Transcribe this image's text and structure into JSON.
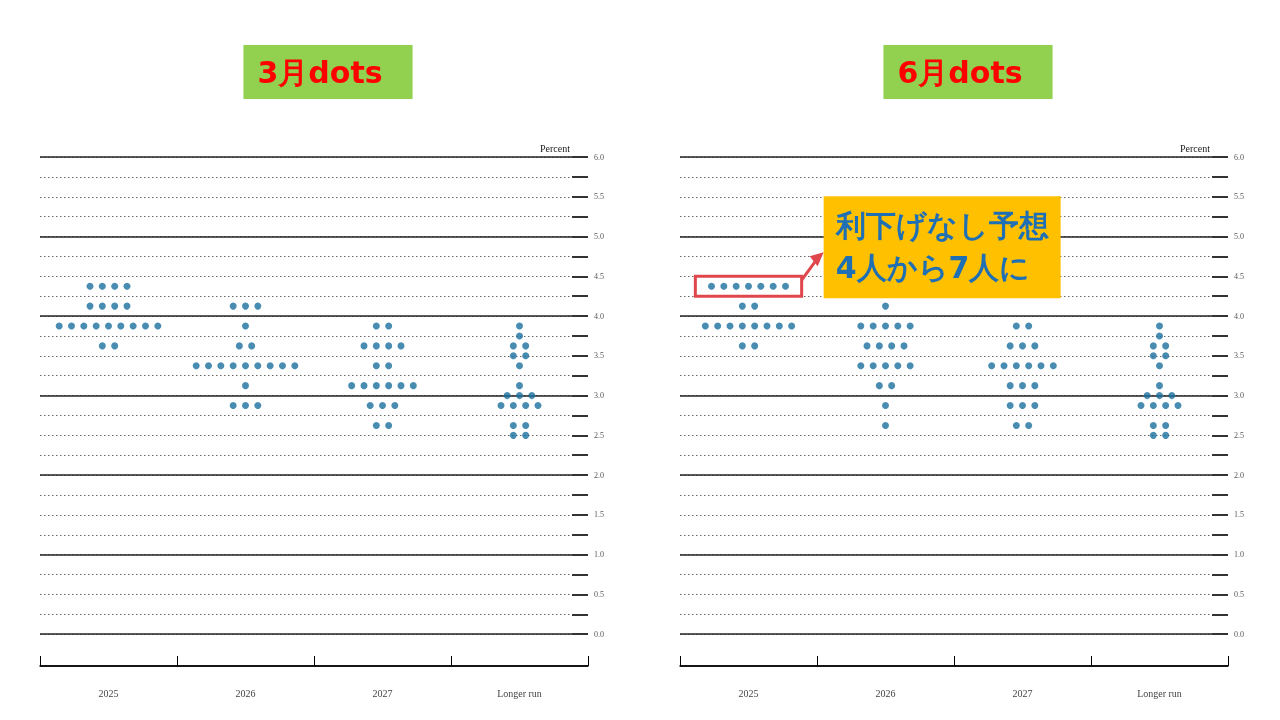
{
  "chart_data": [
    {
      "type": "scatter",
      "title": "3月dots",
      "ylabel": "Percent",
      "categories": [
        "2025",
        "2026",
        "2027",
        "Longer run"
      ],
      "ylim": [
        -0.4,
        6.0
      ],
      "yticks": [
        {
          "value": 0,
          "label": "0.0"
        },
        {
          "value": 0.25,
          "label": null
        },
        {
          "value": 0.5,
          "label": "0.5"
        },
        {
          "value": 0.75,
          "label": null
        },
        {
          "value": 1,
          "label": "1.0"
        },
        {
          "value": 1.25,
          "label": null
        },
        {
          "value": 1.5,
          "label": "1.5"
        },
        {
          "value": 1.75,
          "label": null
        },
        {
          "value": 2,
          "label": "2.0"
        },
        {
          "value": 2.25,
          "label": null
        },
        {
          "value": 2.5,
          "label": "2.5"
        },
        {
          "value": 2.75,
          "label": null
        },
        {
          "value": 3,
          "label": "3.0"
        },
        {
          "value": 3.25,
          "label": null
        },
        {
          "value": 3.5,
          "label": "3.5"
        },
        {
          "value": 3.75,
          "label": null
        },
        {
          "value": 4,
          "label": "4.0"
        },
        {
          "value": 4.25,
          "label": null
        },
        {
          "value": 4.5,
          "label": "4.5"
        },
        {
          "value": 4.75,
          "label": null
        },
        {
          "value": 5,
          "label": "5.0"
        },
        {
          "value": 5.25,
          "label": null
        },
        {
          "value": 5.5,
          "label": "5.5"
        },
        {
          "value": 5.75,
          "label": null
        },
        {
          "value": 6,
          "label": "6.0"
        }
      ],
      "grid": "y",
      "marker": "circle",
      "series": [
        {
          "color": "#1b6f9e",
          "values": [
            4.375,
            4.125,
            3.875,
            3.875
          ]
        },
        {
          "color": "#1b6f9e",
          "values": [
            4.375,
            4.125,
            3.875,
            3.75
          ]
        },
        {
          "color": "#1b6f9e",
          "values": [
            4.375,
            4.125,
            3.625,
            3.625
          ]
        },
        {
          "color": "#1b6f9e",
          "values": [
            4.375,
            3.875,
            3.625,
            3.625
          ]
        },
        {
          "color": "#1b6f9e",
          "values": [
            4.125,
            3.625,
            3.625,
            3.5
          ]
        },
        {
          "color": "#1b6f9e",
          "values": [
            4.125,
            3.625,
            3.625,
            3.5
          ]
        },
        {
          "color": "#1b6f9e",
          "values": [
            4.125,
            3.375,
            3.375,
            3.375
          ]
        },
        {
          "color": "#1b6f9e",
          "values": [
            4.125,
            3.375,
            3.375,
            3.125
          ]
        },
        {
          "color": "#1b6f9e",
          "values": [
            3.875,
            3.375,
            3.125,
            3.0
          ]
        },
        {
          "color": "#1b6f9e",
          "values": [
            3.875,
            3.375,
            3.125,
            3.0
          ]
        },
        {
          "color": "#1b6f9e",
          "values": [
            3.875,
            3.375,
            3.125,
            3.0
          ]
        },
        {
          "color": "#1b6f9e",
          "values": [
            3.875,
            3.375,
            3.125,
            2.875
          ]
        },
        {
          "color": "#1b6f9e",
          "values": [
            3.875,
            3.375,
            3.125,
            2.875
          ]
        },
        {
          "color": "#1b6f9e",
          "values": [
            3.875,
            3.375,
            3.125,
            2.875
          ]
        },
        {
          "color": "#1b6f9e",
          "values": [
            3.875,
            3.375,
            2.875,
            2.875
          ]
        },
        {
          "color": "#1b6f9e",
          "values": [
            3.875,
            3.125,
            2.875,
            2.625
          ]
        },
        {
          "color": "#1b6f9e",
          "values": [
            3.875,
            2.875,
            2.875,
            2.625
          ]
        },
        {
          "color": "#1b6f9e",
          "values": [
            3.625,
            2.875,
            2.625,
            2.5
          ]
        },
        {
          "color": "#1b6f9e",
          "values": [
            3.625,
            2.875,
            2.625,
            2.5
          ]
        }
      ]
    },
    {
      "type": "scatter",
      "title": "6月dots",
      "ylabel": "Percent",
      "categories": [
        "2025",
        "2026",
        "2027",
        "Longer run"
      ],
      "ylim": [
        -0.4,
        6.0
      ],
      "yticks": [
        {
          "value": 0,
          "label": "0.0"
        },
        {
          "value": 0.25,
          "label": null
        },
        {
          "value": 0.5,
          "label": "0.5"
        },
        {
          "value": 0.75,
          "label": null
        },
        {
          "value": 1,
          "label": "1.0"
        },
        {
          "value": 1.25,
          "label": null
        },
        {
          "value": 1.5,
          "label": "1.5"
        },
        {
          "value": 1.75,
          "label": null
        },
        {
          "value": 2,
          "label": "2.0"
        },
        {
          "value": 2.25,
          "label": null
        },
        {
          "value": 2.5,
          "label": "2.5"
        },
        {
          "value": 2.75,
          "label": null
        },
        {
          "value": 3,
          "label": "3.0"
        },
        {
          "value": 3.25,
          "label": null
        },
        {
          "value": 3.5,
          "label": "3.5"
        },
        {
          "value": 3.75,
          "label": null
        },
        {
          "value": 4,
          "label": "4.0"
        },
        {
          "value": 4.25,
          "label": null
        },
        {
          "value": 4.5,
          "label": "4.5"
        },
        {
          "value": 4.75,
          "label": null
        },
        {
          "value": 5,
          "label": "5.0"
        },
        {
          "value": 5.25,
          "label": null
        },
        {
          "value": 5.5,
          "label": "5.5"
        },
        {
          "value": 5.75,
          "label": null
        },
        {
          "value": 6,
          "label": "6.0"
        }
      ],
      "grid": "y",
      "marker": "circle",
      "annotations": [
        {
          "text": "利下げなし予想\n4人から7人に",
          "x": "2025",
          "y": 4.375
        }
      ],
      "series": [
        {
          "color": "#1b6f9e",
          "values": [
            4.375,
            4.125,
            3.875,
            3.875
          ]
        },
        {
          "color": "#1b6f9e",
          "values": [
            4.375,
            3.875,
            3.875,
            3.75
          ]
        },
        {
          "color": "#1b6f9e",
          "values": [
            4.375,
            3.875,
            3.625,
            3.625
          ]
        },
        {
          "color": "#1b6f9e",
          "values": [
            4.375,
            3.875,
            3.625,
            3.625
          ]
        },
        {
          "color": "#1b6f9e",
          "values": [
            4.375,
            3.875,
            3.625,
            3.5
          ]
        },
        {
          "color": "#1b6f9e",
          "values": [
            4.375,
            3.875,
            3.375,
            3.5
          ]
        },
        {
          "color": "#1b6f9e",
          "values": [
            4.375,
            3.625,
            3.375,
            3.375
          ]
        },
        {
          "color": "#1b6f9e",
          "values": [
            4.125,
            3.625,
            3.375,
            3.125
          ]
        },
        {
          "color": "#1b6f9e",
          "values": [
            4.125,
            3.625,
            3.375,
            3.0
          ]
        },
        {
          "color": "#1b6f9e",
          "values": [
            3.875,
            3.625,
            3.375,
            3.0
          ]
        },
        {
          "color": "#1b6f9e",
          "values": [
            3.875,
            3.375,
            3.375,
            3.0
          ]
        },
        {
          "color": "#1b6f9e",
          "values": [
            3.875,
            3.375,
            3.125,
            2.875
          ]
        },
        {
          "color": "#1b6f9e",
          "values": [
            3.875,
            3.375,
            3.125,
            2.875
          ]
        },
        {
          "color": "#1b6f9e",
          "values": [
            3.875,
            3.375,
            3.125,
            2.875
          ]
        },
        {
          "color": "#1b6f9e",
          "values": [
            3.875,
            3.375,
            2.875,
            2.875
          ]
        },
        {
          "color": "#1b6f9e",
          "values": [
            3.875,
            3.125,
            2.875,
            2.625
          ]
        },
        {
          "color": "#1b6f9e",
          "values": [
            3.875,
            3.125,
            2.875,
            2.625
          ]
        },
        {
          "color": "#1b6f9e",
          "values": [
            3.625,
            2.875,
            2.625,
            2.5
          ]
        },
        {
          "color": "#1b6f9e",
          "values": [
            3.625,
            2.625,
            2.625,
            2.5
          ]
        }
      ]
    }
  ]
}
